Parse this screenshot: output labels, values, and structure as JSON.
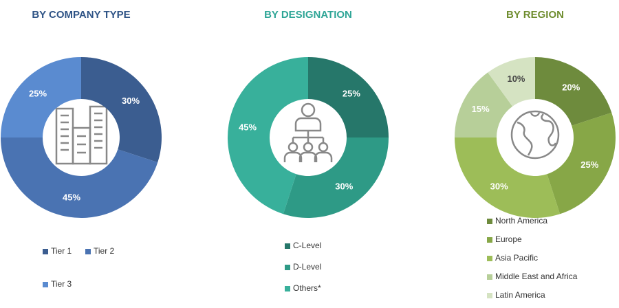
{
  "chart_data": [
    {
      "type": "pie",
      "title": "BY COMPANY TYPE",
      "categories": [
        "Tier 1",
        "Tier 2",
        "Tier 3"
      ],
      "values": [
        30,
        45,
        25
      ],
      "value_labels": [
        "30%",
        "45%",
        "25%"
      ],
      "colors": [
        "#3b5d90",
        "#4a73b2",
        "#5a8bd0"
      ],
      "title_color": "#2f5486"
    },
    {
      "type": "pie",
      "title": "BY DESIGNATION",
      "categories": [
        "C-Level",
        "D-Level",
        "Others*"
      ],
      "values": [
        25,
        30,
        45
      ],
      "value_labels": [
        "25%",
        "30%",
        "45%"
      ],
      "colors": [
        "#26776a",
        "#2e9a86",
        "#38b09b"
      ],
      "title_color": "#2ea596"
    },
    {
      "type": "pie",
      "title": "BY REGION",
      "categories": [
        "North America",
        "Europe",
        "Asia Pacific",
        "Middle East and Africa",
        "Latin America"
      ],
      "values": [
        20,
        25,
        30,
        15,
        10
      ],
      "value_labels": [
        "20%",
        "25%",
        "30%",
        "15%",
        "10%"
      ],
      "colors": [
        "#6e8b3d",
        "#87a747",
        "#9dbd58",
        "#b7cf99",
        "#d5e3c2"
      ],
      "title_color": "#6f8d2f"
    }
  ]
}
